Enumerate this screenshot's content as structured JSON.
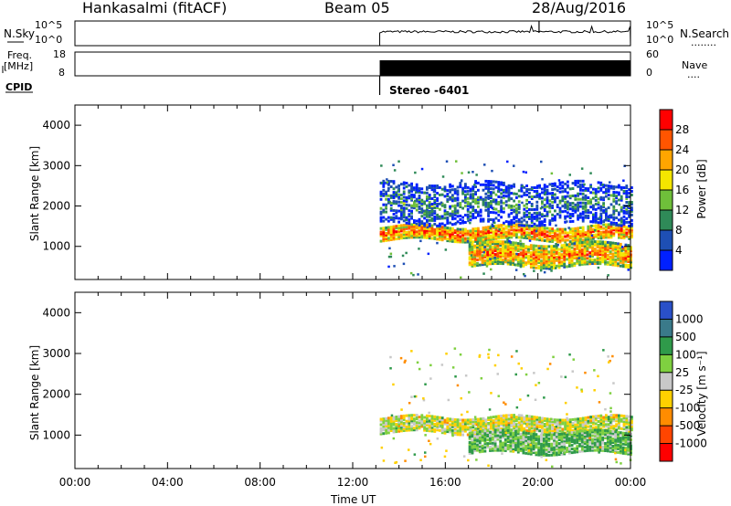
{
  "header": {
    "station": "Hankasalmi (fitACF)",
    "beam": "Beam 05",
    "date": "28/Aug/2016"
  },
  "noise_panel": {
    "left_label": "N.Sky",
    "right_label": "N.Search",
    "right_dots": "........",
    "y_ticks_left": [
      "10^5",
      "10^0"
    ],
    "y_ticks_right": [
      "10^5",
      "10^0"
    ]
  },
  "freq_panel": {
    "left_label_top": "Freq.",
    "left_label_unit": "[MHz]",
    "right_label": "Nave",
    "right_dots": "....",
    "y_ticks_left": [
      18,
      8
    ],
    "y_ticks_right": [
      60,
      0
    ]
  },
  "cpid": {
    "label": "CPID",
    "mode_text": "Stereo -6401",
    "start_time": "13:10"
  },
  "chart_data": [
    {
      "type": "heatmap",
      "quantity": "Power",
      "ylabel": "Slant Range [km]",
      "y_ticks": [
        1000,
        2000,
        3000,
        4000
      ],
      "ylim": [
        180,
        4500
      ],
      "xlim": [
        "00:00",
        "24:00"
      ],
      "data_start": "13:10",
      "colorbar": {
        "label": "Power [dB]",
        "ticks": [
          4,
          8,
          12,
          16,
          20,
          24,
          28
        ],
        "range": [
          0,
          32
        ],
        "colors": [
          "#0020ff",
          "#1e4fb4",
          "#2f8a58",
          "#6fbf3a",
          "#f4e600",
          "#ffa500",
          "#ff5500",
          "#ff0000"
        ]
      },
      "features": [
        {
          "band": "main echo band",
          "t_start": "13:10",
          "t_end": "24:00",
          "range_start_km": 1200,
          "range_end_km": 1550,
          "power_db": 26
        },
        {
          "band": "lower echo band",
          "t_start": "17:00",
          "t_end": "24:00",
          "range_start_km": 550,
          "range_end_km": 1100,
          "power_db": 24
        },
        {
          "band": "upper scatter",
          "t_start": "13:10",
          "t_end": "24:00",
          "range_start_km": 1600,
          "range_end_km": 2600,
          "power_db": 10
        }
      ]
    },
    {
      "type": "heatmap",
      "quantity": "Velocity",
      "ylabel": "Slant Range [km]",
      "y_ticks": [
        1000,
        2000,
        3000,
        4000
      ],
      "ylim": [
        180,
        4500
      ],
      "xlim": [
        "00:00",
        "24:00"
      ],
      "data_start": "13:10",
      "colorbar": {
        "label": "Velocity [m s⁻¹]",
        "ticks": [
          1000,
          500,
          100,
          25,
          -25,
          -100,
          -500,
          -1000
        ],
        "colors": [
          "#2a50c8",
          "#3a7a8a",
          "#2f9a4a",
          "#7fd040",
          "#c8c8c8",
          "#ffd000",
          "#ff8c00",
          "#ff4500",
          "#ff0000"
        ]
      },
      "features": [
        {
          "band": "ground scatter",
          "t_start": "13:10",
          "t_end": "24:00",
          "range_start_km": 1100,
          "range_end_km": 1500,
          "velocity_ms": 0
        },
        {
          "band": "ionospheric scatter",
          "t_start": "17:00",
          "t_end": "24:00",
          "range_start_km": 600,
          "range_end_km": 1100,
          "velocity_ms": 100
        }
      ]
    }
  ],
  "time_axis": {
    "label": "Time UT",
    "ticks": [
      "00:00",
      "04:00",
      "08:00",
      "12:00",
      "16:00",
      "20:00",
      "00:00"
    ]
  }
}
